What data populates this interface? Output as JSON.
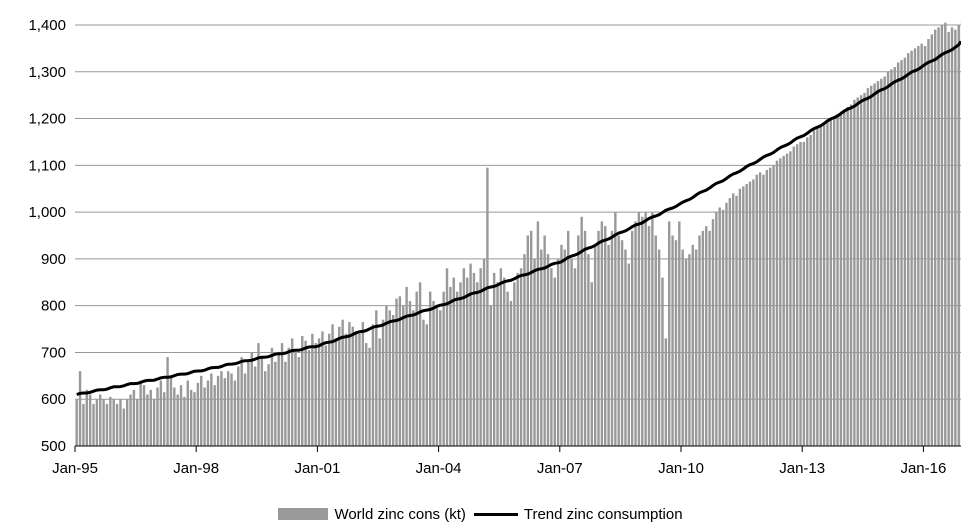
{
  "chart_data": {
    "type": "bar",
    "xlabel": "",
    "ylabel": "",
    "ylim": [
      500,
      1400
    ],
    "y_ticks": [
      "500",
      "600",
      "700",
      "800",
      "900",
      "1,000",
      "1,100",
      "1,200",
      "1,300",
      "1,400"
    ],
    "y_tick_values": [
      500,
      600,
      700,
      800,
      900,
      1000,
      1100,
      1200,
      1300,
      1400
    ],
    "x_ticks": [
      "Jan-95",
      "Jan-98",
      "Jan-01",
      "Jan-04",
      "Jan-07",
      "Jan-10",
      "Jan-13",
      "Jan-16"
    ],
    "grid": "horizontal",
    "legend_position": "bottom",
    "colors": {
      "bars": "#999999",
      "trend": "#000000",
      "grid": "#999999"
    },
    "series": [
      {
        "name": "World zinc cons (kt)",
        "type": "bar",
        "period_start": "1995-01",
        "frequency": "monthly",
        "values": [
          600,
          660,
          590,
          620,
          610,
          590,
          600,
          610,
          600,
          590,
          605,
          600,
          590,
          600,
          580,
          600,
          610,
          620,
          600,
          640,
          630,
          610,
          620,
          600,
          625,
          640,
          615,
          690,
          650,
          625,
          610,
          630,
          605,
          640,
          620,
          615,
          635,
          650,
          625,
          640,
          655,
          630,
          650,
          660,
          645,
          660,
          655,
          640,
          670,
          690,
          655,
          685,
          700,
          670,
          720,
          690,
          660,
          675,
          710,
          680,
          700,
          720,
          680,
          710,
          730,
          700,
          690,
          735,
          725,
          705,
          740,
          720,
          730,
          745,
          715,
          740,
          760,
          730,
          755,
          770,
          740,
          765,
          755,
          745,
          740,
          765,
          720,
          710,
          760,
          790,
          730,
          770,
          800,
          790,
          780,
          815,
          820,
          800,
          840,
          810,
          790,
          830,
          850,
          770,
          760,
          830,
          810,
          800,
          790,
          830,
          880,
          840,
          860,
          830,
          850,
          880,
          860,
          890,
          870,
          850,
          880,
          900,
          1095,
          800,
          870,
          850,
          880,
          860,
          830,
          810,
          850,
          870,
          880,
          910,
          950,
          960,
          900,
          980,
          920,
          950,
          910,
          880,
          860,
          900,
          930,
          920,
          960,
          900,
          880,
          950,
          990,
          960,
          910,
          850,
          930,
          960,
          980,
          970,
          930,
          960,
          1000,
          950,
          940,
          920,
          890,
          960,
          980,
          1000,
          990,
          1000,
          970,
          1000,
          950,
          920,
          860,
          730,
          980,
          950,
          940,
          980,
          920,
          900,
          910,
          930,
          920,
          950,
          960,
          970,
          960,
          985,
          1000,
          1010,
          1005,
          1020,
          1030,
          1040,
          1035,
          1050,
          1055,
          1060,
          1065,
          1070,
          1080,
          1085,
          1080,
          1090,
          1095,
          1100,
          1110,
          1115,
          1120,
          1125,
          1130,
          1140,
          1145,
          1150,
          1150,
          1160,
          1165,
          1175,
          1180,
          1185,
          1190,
          1195,
          1200,
          1205,
          1210,
          1215,
          1215,
          1225,
          1230,
          1240,
          1245,
          1250,
          1255,
          1265,
          1270,
          1275,
          1280,
          1285,
          1290,
          1300,
          1305,
          1310,
          1320,
          1325,
          1330,
          1340,
          1345,
          1350,
          1355,
          1360,
          1355,
          1370,
          1380,
          1390,
          1395,
          1400,
          1405,
          1385,
          1395,
          1390,
          1400,
          1410,
          1400
        ]
      },
      {
        "name": "Trend zinc consumption",
        "type": "line",
        "anchors": [
          {
            "x": "Jan-95",
            "y": 610
          },
          {
            "x": "Jan-98",
            "y": 660
          },
          {
            "x": "Jan-01",
            "y": 715
          },
          {
            "x": "Jan-04",
            "y": 800
          },
          {
            "x": "Jan-07",
            "y": 895
          },
          {
            "x": "Jan-10",
            "y": 1020
          },
          {
            "x": "Jan-13",
            "y": 1165
          },
          {
            "x": "Jan-16",
            "y": 1315
          },
          {
            "x": "Jan-17",
            "y": 1365
          }
        ]
      }
    ]
  }
}
